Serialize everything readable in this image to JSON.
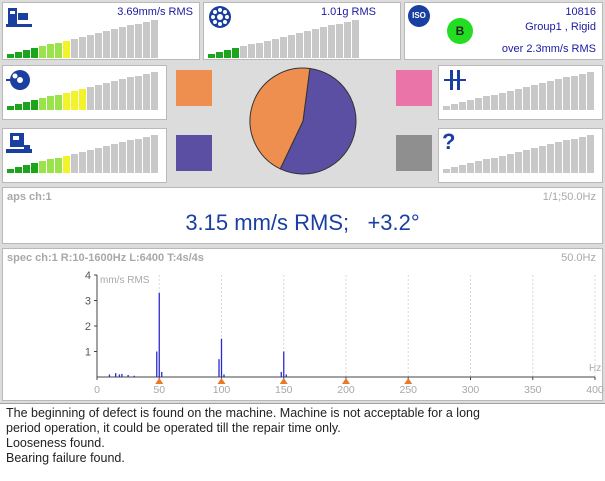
{
  "indicators": {
    "vel": {
      "value": "3.69mm/s RMS",
      "level": 0.47,
      "icon": "machine-icon"
    },
    "acc": {
      "value": "1.01g RMS",
      "level": 0.26,
      "icon": "bearing-icon"
    },
    "iso": {
      "badge": "ISO",
      "class": "B",
      "id": "10816",
      "group": "Group1 , Rigid",
      "limit": "over 2.3mm/s RMS",
      "class_color": "#22dd22"
    },
    "unbalance": {
      "level": 0.53,
      "icon": "unbalance-icon"
    },
    "looseness": {
      "level": 0.47,
      "icon": "looseness-icon"
    },
    "misalignment": {
      "level": 0.0,
      "icon": "coupling-icon"
    },
    "unknown": {
      "level": 0.0,
      "icon": "question-icon"
    }
  },
  "squares": {
    "orange": "#ef8f4f",
    "purple": "#5b4fa3",
    "pink": "#ea73a8",
    "grey": "#8f8f8f"
  },
  "pie": {
    "values": [
      45,
      55
    ],
    "colors": [
      "#ef8f4f",
      "#5b4fa3"
    ]
  },
  "aps": {
    "label": "aps ch:1",
    "right": "1/1;50.0Hz",
    "value": "3.15 mm/s RMS;   +3.2°"
  },
  "spec": {
    "label": "spec ch:1 R:10-1600Hz L:6400 T:4s/4s",
    "right": "50.0Hz"
  },
  "chart_data": {
    "type": "bar",
    "ylabel": "mm/s RMS",
    "xlabel": "Hz",
    "ylim": [
      0,
      4
    ],
    "xlim": [
      0,
      400
    ],
    "xticks": [
      0,
      50,
      100,
      150,
      200,
      250,
      300,
      350,
      400
    ],
    "yticks": [
      1,
      2,
      3,
      4
    ],
    "harmonic_markers": [
      50,
      100,
      150,
      200,
      250
    ],
    "x": [
      10,
      15,
      18,
      20,
      25,
      30,
      48,
      50,
      52,
      98,
      100,
      102,
      148,
      150,
      152
    ],
    "values": [
      0.1,
      0.15,
      0.1,
      0.12,
      0.08,
      0.05,
      1.0,
      3.3,
      0.2,
      0.7,
      1.5,
      0.1,
      0.2,
      1.0,
      0.1
    ]
  },
  "message": [
    "The beginning of defect is found on the machine. Machine is not acceptable for a long",
    "period operation, it could be operated till the repair time only.",
    "Looseness found.",
    "Bearing failure found."
  ]
}
